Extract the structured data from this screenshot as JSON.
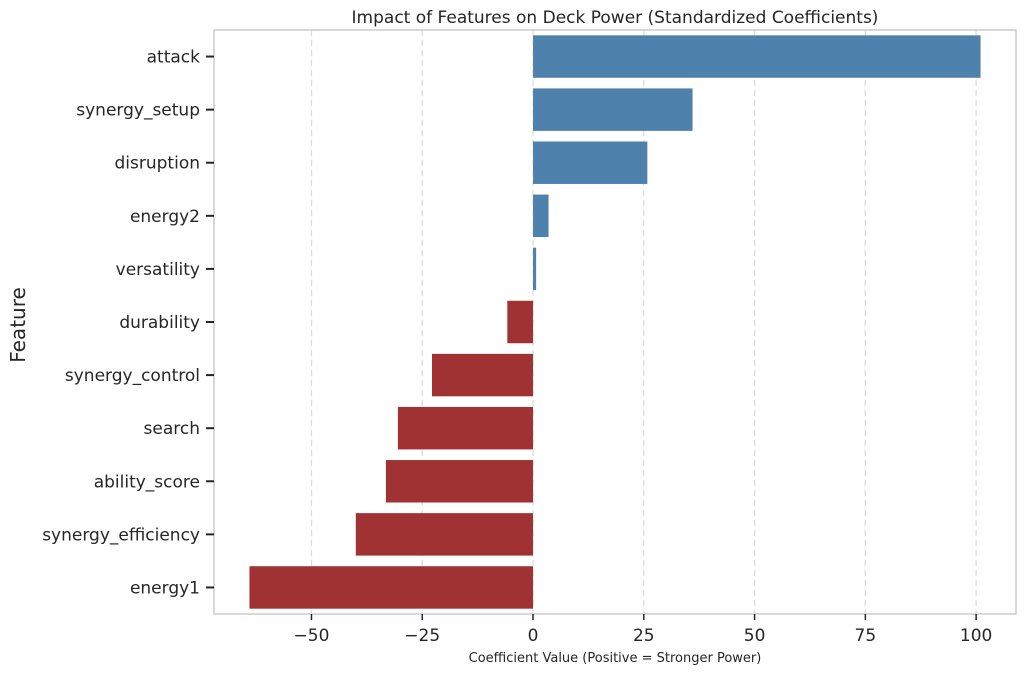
{
  "chart_data": {
    "type": "bar",
    "orientation": "horizontal",
    "title": "Impact of Features on Deck Power (Standardized Coefficients)",
    "xlabel": "Coefficient Value (Positive = Stronger Power)",
    "ylabel": "Feature",
    "xlim": [
      -72,
      109
    ],
    "xticks": [
      -50,
      -25,
      0,
      25,
      50,
      75,
      100
    ],
    "xtick_labels": [
      "−50",
      "−25",
      "0",
      "25",
      "50",
      "75",
      "100"
    ],
    "grid": "vertical dashed",
    "categories": [
      "attack",
      "synergy_setup",
      "disruption",
      "energy2",
      "versatility",
      "durability",
      "synergy_control",
      "search",
      "ability_score",
      "synergy_efficiency",
      "energy1"
    ],
    "values": [
      101,
      36,
      25.8,
      3.5,
      0.7,
      -5.8,
      -22.8,
      -30.5,
      -33.2,
      -40,
      -64
    ],
    "colors": {
      "positive": "#4e81ab",
      "negative": "#a03234"
    }
  }
}
